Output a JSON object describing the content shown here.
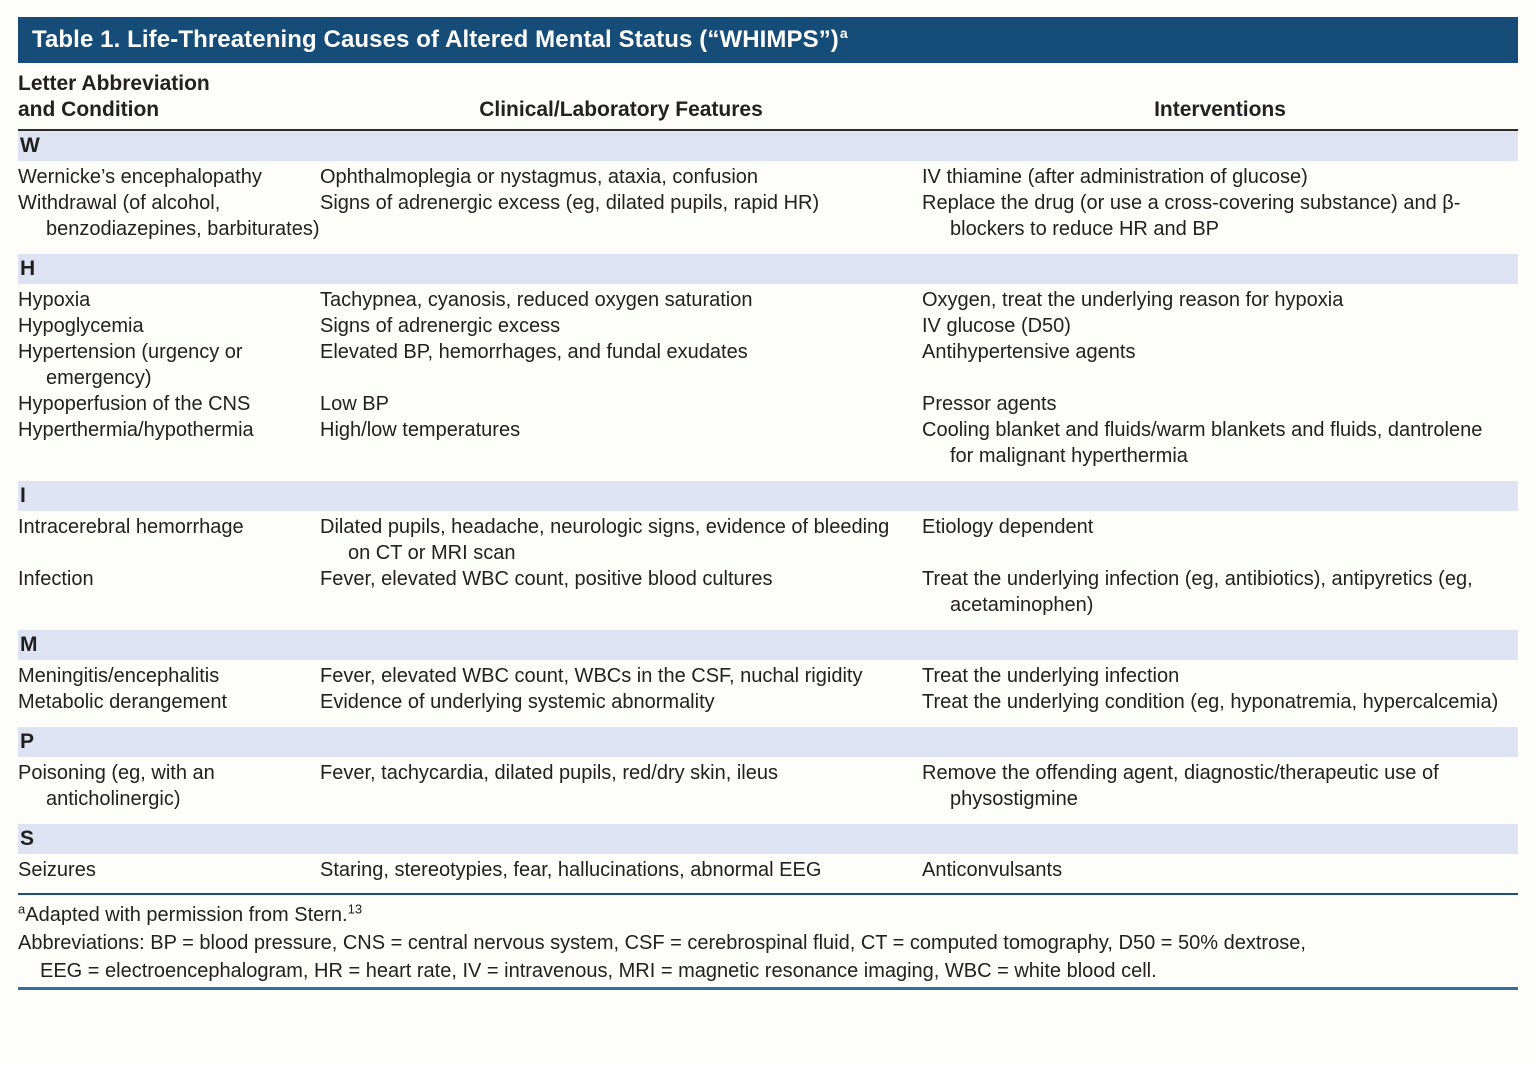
{
  "title": "Table 1. Life-Threatening Causes of Altered Mental Status (“WHIMPS”)",
  "title_marker": "a",
  "columns": {
    "col1_line1": "Letter Abbreviation",
    "col1_line2": "and Condition",
    "col2": "Clinical/Laboratory Features",
    "col3": "Interventions"
  },
  "sections": [
    {
      "letter": "W",
      "rows": [
        {
          "condition": "Wernicke’s encephalopathy",
          "features": "Ophthalmoplegia or nystagmus, ataxia, confusion",
          "interventions": "IV thiamine (after administration of glucose)"
        },
        {
          "condition": "Withdrawal (of alcohol, benzodiazepines, barbiturates)",
          "features": "Signs of adrenergic excess (eg, dilated pupils, rapid HR)",
          "interventions": "Replace the drug (or use a cross-covering substance) and β-blockers to reduce HR and BP"
        }
      ]
    },
    {
      "letter": "H",
      "rows": [
        {
          "condition": "Hypoxia",
          "features": "Tachypnea, cyanosis, reduced oxygen saturation",
          "interventions": "Oxygen, treat the underlying reason for hypoxia"
        },
        {
          "condition": "Hypoglycemia",
          "features": "Signs of adrenergic excess",
          "interventions": "IV glucose (D50)"
        },
        {
          "condition": "Hypertension (urgency or emergency)",
          "features": "Elevated BP, hemorrhages, and fundal exudates",
          "interventions": "Antihypertensive agents"
        },
        {
          "condition": "Hypoperfusion of the CNS",
          "features": "Low BP",
          "interventions": "Pressor agents"
        },
        {
          "condition": "Hyperthermia/hypothermia",
          "features": "High/low temperatures",
          "interventions": "Cooling blanket and fluids/warm blankets and fluids, dantrolene for malignant hyperthermia"
        }
      ]
    },
    {
      "letter": "I",
      "rows": [
        {
          "condition": "Intracerebral hemorrhage",
          "features": "Dilated pupils, headache, neurologic signs, evidence of bleeding on CT or MRI scan",
          "interventions": "Etiology dependent"
        },
        {
          "condition": "Infection",
          "features": "Fever, elevated WBC count, positive blood cultures",
          "interventions": "Treat the underlying infection (eg, antibiotics), antipyretics (eg, acetaminophen)"
        }
      ]
    },
    {
      "letter": "M",
      "rows": [
        {
          "condition": "Meningitis/encephalitis",
          "features": "Fever, elevated WBC count, WBCs in the CSF, nuchal rigidity",
          "interventions": "Treat the underlying infection"
        },
        {
          "condition": "Metabolic derangement",
          "features": "Evidence of underlying systemic abnormality",
          "interventions": "Treat the underlying condition (eg, hyponatremia, hypercalcemia)"
        }
      ]
    },
    {
      "letter": "P",
      "rows": [
        {
          "condition": "Poisoning (eg, with an anticholinergic)",
          "features": "Fever, tachycardia, dilated pupils, red/dry skin, ileus",
          "interventions": "Remove the offending agent, diagnostic/therapeutic use of physostigmine"
        }
      ]
    },
    {
      "letter": "S",
      "rows": [
        {
          "condition": "Seizures",
          "features": "Staring, stereotypies, fear, hallucinations, abnormal EEG",
          "interventions": "Anticonvulsants"
        }
      ]
    }
  ],
  "footnotes": {
    "adapted_marker": "a",
    "adapted_text": "Adapted with permission from Stern.",
    "adapted_ref": "13",
    "abbrev_line1": "Abbreviations: BP = blood pressure, CNS = central nervous system, CSF = cerebrospinal fluid, CT = computed tomography, D50 = 50% dextrose,",
    "abbrev_line2": "EEG = electroencephalogram, HR = heart rate, IV = intravenous, MRI = magnetic resonance imaging, WBC = white blood cell."
  },
  "colors": {
    "title_bar": "#164d78",
    "section_band": "#dde3f2",
    "header_rule": "#2a2a2a",
    "pre_footnote_rule": "#1c4f7a",
    "bottom_rule": "#2f6fa6",
    "text": "#242021",
    "background": "#fdfdfa"
  }
}
